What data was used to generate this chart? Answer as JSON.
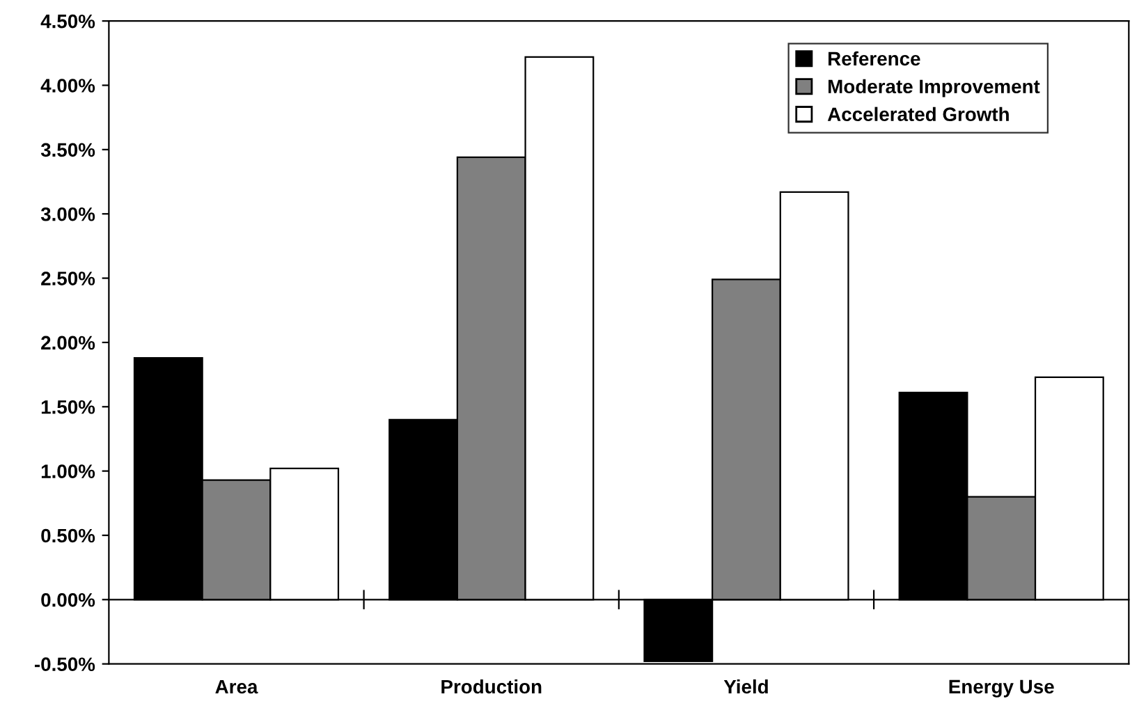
{
  "chart_data": {
    "type": "bar",
    "categories": [
      "Area",
      "Production",
      "Yield",
      "Energy Use"
    ],
    "series": [
      {
        "name": "Reference",
        "color": "#000000",
        "values": [
          1.88,
          1.4,
          -0.48,
          1.61
        ]
      },
      {
        "name": "Moderate Improvement",
        "color": "#808080",
        "values": [
          0.93,
          3.44,
          2.49,
          0.8
        ]
      },
      {
        "name": "Accelerated Growth",
        "color": "#ffffff",
        "values": [
          1.02,
          4.22,
          3.17,
          1.73
        ]
      }
    ],
    "ylim": [
      -0.5,
      4.5
    ],
    "yticks": [
      {
        "value": -0.5,
        "label": "-0.50%"
      },
      {
        "value": 0,
        "label": "0.00%"
      },
      {
        "value": 0.5,
        "label": "0.50%"
      },
      {
        "value": 1,
        "label": "1.00%"
      },
      {
        "value": 1.5,
        "label": "1.50%"
      },
      {
        "value": 2,
        "label": "2.00%"
      },
      {
        "value": 2.5,
        "label": "2.50%"
      },
      {
        "value": 3,
        "label": "3.00%"
      },
      {
        "value": 3.5,
        "label": "3.50%"
      },
      {
        "value": 4,
        "label": "4.00%"
      },
      {
        "value": 4.5,
        "label": "4.50%"
      }
    ],
    "legend": "top right"
  }
}
